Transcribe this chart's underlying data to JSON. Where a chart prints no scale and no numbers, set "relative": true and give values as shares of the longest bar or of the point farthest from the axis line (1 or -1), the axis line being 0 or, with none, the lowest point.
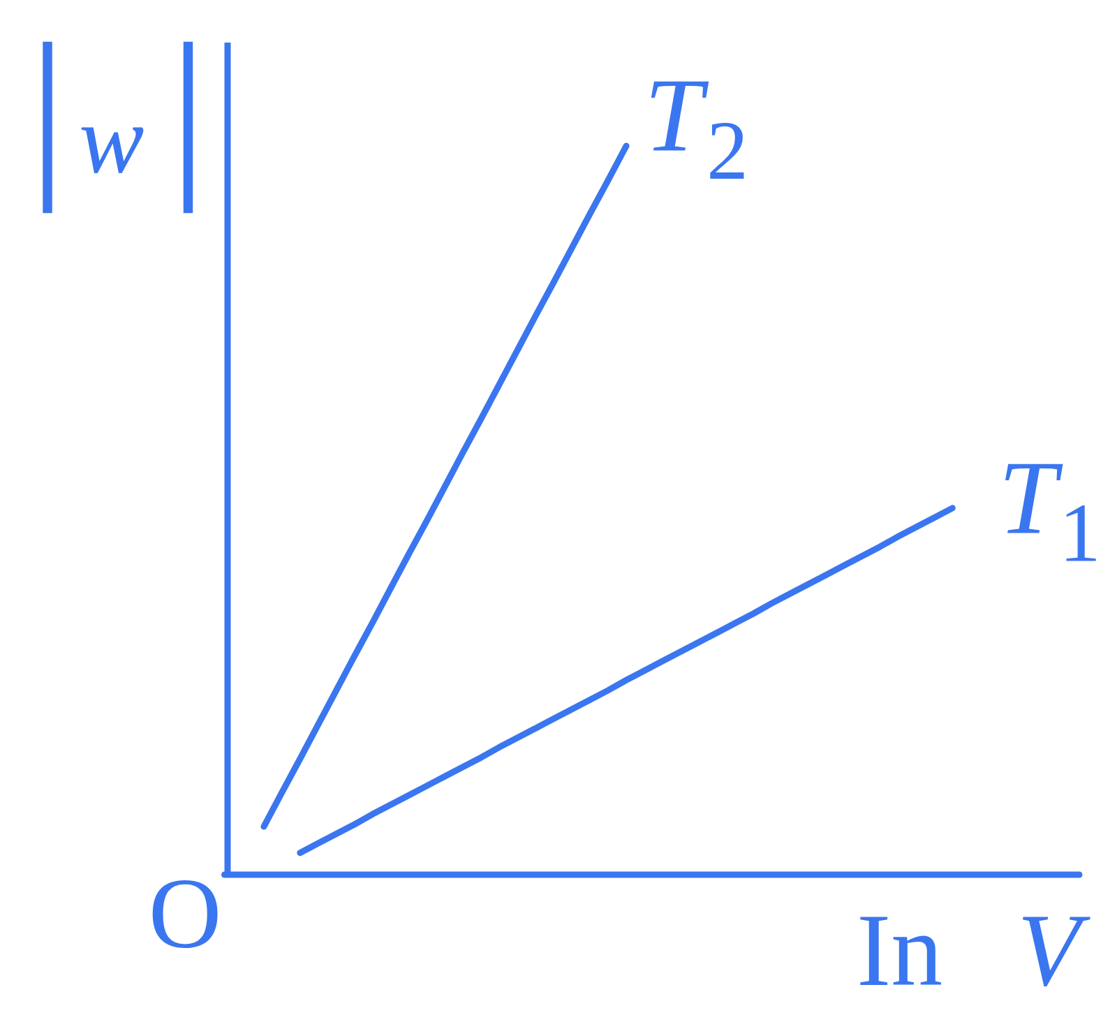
{
  "chart_data": {
    "type": "line",
    "relative": true,
    "ylabel": "|w|",
    "xlabel": "In V",
    "annotations": [
      "O"
    ],
    "categories": [
      null,
      null,
      null,
      null,
      null,
      null,
      null,
      null,
      null,
      null,
      null,
      null,
      null,
      null,
      null,
      null,
      null,
      null,
      null,
      null,
      null,
      null,
      null,
      null,
      null,
      null,
      null,
      null,
      null,
      null,
      null,
      null,
      null,
      null,
      null,
      null,
      null,
      null,
      null,
      null,
      null,
      null,
      null,
      null,
      null,
      null,
      null,
      null
    ],
    "series": [
      {
        "name": "T₂",
        "color": "#3a76f0",
        "values": [
          null,
          null,
          0.066,
          0.113,
          0.159,
          0.206,
          0.253,
          0.3,
          0.346,
          0.393,
          0.44,
          0.486,
          0.533,
          0.58,
          0.626,
          0.673,
          0.72,
          0.767,
          0.813,
          0.86,
          0.907,
          0.953,
          1,
          null,
          null,
          null,
          null,
          null,
          null,
          null,
          null,
          null,
          null,
          null,
          null,
          null,
          null,
          null,
          null,
          null,
          null,
          null,
          null,
          null,
          null,
          null,
          null,
          null
        ]
      },
      {
        "name": "T₁",
        "color": "#3a76f0",
        "values": [
          null,
          null,
          null,
          null,
          0.03,
          0.043,
          0.056,
          0.069,
          0.083,
          0.096,
          0.109,
          0.122,
          0.135,
          0.148,
          0.161,
          0.175,
          0.188,
          0.201,
          0.214,
          0.227,
          0.24,
          0.253,
          0.267,
          0.28,
          0.293,
          0.306,
          0.319,
          0.332,
          0.345,
          0.358,
          0.372,
          0.385,
          0.398,
          0.411,
          0.424,
          0.437,
          0.45,
          0.464,
          0.477,
          0.49,
          0.503,
          null,
          null,
          null,
          null,
          null,
          null,
          null
        ]
      }
    ]
  }
}
